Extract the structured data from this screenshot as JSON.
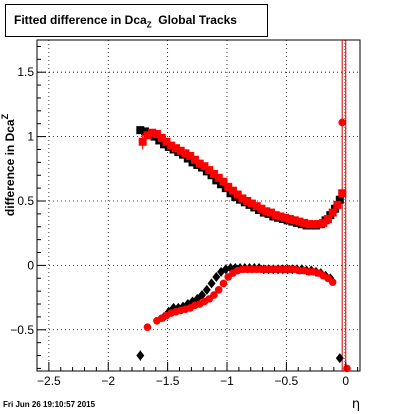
{
  "chart_data": {
    "type": "scatter",
    "title": "Fitted difference in Dca",
    "title_sub": "Z",
    "title_suffix": "Global Tracks",
    "ylabel": "difference in Dca",
    "ylabel_sub": "Z",
    "xlabel": "η",
    "xlim": [
      -2.6,
      0.12
    ],
    "ylim": [
      -0.82,
      1.75
    ],
    "grid": true,
    "xticks": [
      -2.5,
      -2,
      -1.5,
      -1,
      -0.5,
      0
    ],
    "xtick_labels": [
      "−2.5",
      "−2",
      "−1.5",
      "−1",
      "−0.5",
      "0"
    ],
    "yticks": [
      -0.5,
      0,
      0.5,
      1,
      1.5
    ],
    "ytick_labels": [
      "−0.5",
      "0",
      "0.5",
      "1",
      "1.5"
    ],
    "vlines": [
      -0.03,
      0.0
    ],
    "series": [
      {
        "marker": "square",
        "color": "#000000",
        "x": [
          -1.73,
          -1.69,
          -1.65,
          -1.61,
          -1.57,
          -1.53,
          -1.49,
          -1.45,
          -1.41,
          -1.37,
          -1.33,
          -1.29,
          -1.25,
          -1.21,
          -1.17,
          -1.13,
          -1.09,
          -1.05,
          -1.01,
          -0.97,
          -0.93,
          -0.89,
          -0.85,
          -0.81,
          -0.77,
          -0.73,
          -0.69,
          -0.65,
          -0.61,
          -0.57,
          -0.53,
          -0.49,
          -0.45,
          -0.41,
          -0.37,
          -0.33,
          -0.29,
          -0.25,
          -0.21,
          -0.17,
          -0.13,
          -0.09,
          -0.05
        ],
        "y": [
          1.05,
          1.04,
          1.02,
          1.0,
          0.97,
          0.94,
          0.92,
          0.9,
          0.88,
          0.86,
          0.83,
          0.8,
          0.78,
          0.76,
          0.73,
          0.7,
          0.66,
          0.63,
          0.6,
          0.56,
          0.53,
          0.51,
          0.49,
          0.47,
          0.45,
          0.43,
          0.41,
          0.4,
          0.38,
          0.37,
          0.36,
          0.35,
          0.34,
          0.33,
          0.32,
          0.31,
          0.31,
          0.31,
          0.32,
          0.35,
          0.39,
          0.44,
          0.51
        ],
        "err": [
          0.03,
          0.03,
          0.02,
          0.02,
          0.02,
          0.02,
          0.01,
          0.01,
          0.01,
          0.01,
          0.01,
          0.01,
          0.01,
          0.01,
          0.01,
          0.01,
          0.01,
          0.01,
          0.01,
          0.01,
          0.01,
          0.01,
          0.01,
          0.01,
          0.01,
          0.01,
          0.01,
          0.01,
          0.01,
          0.01,
          0.01,
          0.01,
          0.01,
          0.01,
          0.01,
          0.01,
          0.01,
          0.01,
          0.01,
          0.01,
          0.01,
          0.02,
          0.02
        ]
      },
      {
        "marker": "square",
        "color": "#ff0000",
        "x": [
          -1.71,
          -1.67,
          -1.63,
          -1.59,
          -1.55,
          -1.51,
          -1.47,
          -1.43,
          -1.39,
          -1.35,
          -1.31,
          -1.27,
          -1.23,
          -1.19,
          -1.15,
          -1.11,
          -1.07,
          -1.03,
          -0.99,
          -0.95,
          -0.91,
          -0.87,
          -0.83,
          -0.79,
          -0.75,
          -0.71,
          -0.67,
          -0.63,
          -0.59,
          -0.55,
          -0.51,
          -0.47,
          -0.43,
          -0.39,
          -0.35,
          -0.31,
          -0.27,
          -0.23,
          -0.19,
          -0.15,
          -0.11,
          -0.07,
          -0.03
        ],
        "y": [
          0.96,
          1.01,
          1.03,
          1.02,
          0.99,
          0.96,
          0.93,
          0.91,
          0.89,
          0.87,
          0.85,
          0.82,
          0.79,
          0.77,
          0.74,
          0.71,
          0.68,
          0.65,
          0.61,
          0.58,
          0.55,
          0.52,
          0.5,
          0.48,
          0.46,
          0.44,
          0.42,
          0.41,
          0.39,
          0.38,
          0.37,
          0.36,
          0.35,
          0.34,
          0.33,
          0.32,
          0.32,
          0.32,
          0.33,
          0.36,
          0.41,
          0.47,
          0.56
        ],
        "err": [
          0.06,
          0.03,
          0.02,
          0.02,
          0.02,
          0.02,
          0.01,
          0.01,
          0.01,
          0.01,
          0.01,
          0.01,
          0.01,
          0.01,
          0.01,
          0.01,
          0.01,
          0.01,
          0.01,
          0.01,
          0.01,
          0.01,
          0.01,
          0.01,
          0.01,
          0.01,
          0.01,
          0.01,
          0.01,
          0.01,
          0.01,
          0.01,
          0.01,
          0.01,
          0.01,
          0.01,
          0.01,
          0.01,
          0.01,
          0.01,
          0.01,
          0.02,
          0.02
        ]
      },
      {
        "marker": "diamond",
        "color": "#000000",
        "x": [
          -1.73,
          -1.53,
          -1.49,
          -1.45,
          -1.41,
          -1.37,
          -1.33,
          -1.29,
          -1.25,
          -1.21,
          -1.17,
          -1.13,
          -1.09,
          -1.05,
          -1.01,
          -0.97,
          -0.93,
          -0.89,
          -0.85,
          -0.81,
          -0.77,
          -0.73,
          -0.69,
          -0.65,
          -0.61,
          -0.57,
          -0.53,
          -0.49,
          -0.45,
          -0.41,
          -0.37,
          -0.33,
          -0.29,
          -0.25,
          -0.21,
          -0.17,
          -0.13,
          -0.05
        ],
        "y": [
          -0.7,
          -0.4,
          -0.36,
          -0.33,
          -0.33,
          -0.32,
          -0.3,
          -0.28,
          -0.26,
          -0.23,
          -0.19,
          -0.14,
          -0.09,
          -0.05,
          -0.03,
          -0.02,
          -0.02,
          -0.02,
          -0.02,
          -0.02,
          -0.02,
          -0.02,
          -0.03,
          -0.03,
          -0.03,
          -0.03,
          -0.03,
          -0.03,
          -0.03,
          -0.03,
          -0.03,
          -0.04,
          -0.04,
          -0.05,
          -0.06,
          -0.08,
          -0.1,
          -0.72
        ],
        "err": [
          0.04,
          0.02,
          0.02,
          0.02,
          0.01,
          0.01,
          0.01,
          0.01,
          0.01,
          0.01,
          0.01,
          0.01,
          0.01,
          0.01,
          0.01,
          0.01,
          0.01,
          0.01,
          0.01,
          0.01,
          0.01,
          0.01,
          0.01,
          0.01,
          0.01,
          0.01,
          0.01,
          0.01,
          0.01,
          0.01,
          0.01,
          0.01,
          0.01,
          0.01,
          0.01,
          0.01,
          0.01,
          0.02
        ]
      },
      {
        "marker": "circle",
        "color": "#ff0000",
        "x": [
          -1.67,
          -1.59,
          -1.55,
          -1.51,
          -1.47,
          -1.43,
          -1.39,
          -1.35,
          -1.31,
          -1.27,
          -1.23,
          -1.19,
          -1.15,
          -1.11,
          -1.07,
          -1.03,
          -0.99,
          -0.95,
          -0.91,
          -0.87,
          -0.83,
          -0.79,
          -0.75,
          -0.71,
          -0.67,
          -0.63,
          -0.59,
          -0.55,
          -0.51,
          -0.47,
          -0.43,
          -0.39,
          -0.35,
          -0.31,
          -0.27,
          -0.23,
          -0.19,
          -0.15,
          -0.11,
          -0.03,
          0.01
        ],
        "y": [
          -0.48,
          -0.43,
          -0.41,
          -0.39,
          -0.37,
          -0.36,
          -0.35,
          -0.34,
          -0.33,
          -0.31,
          -0.3,
          -0.28,
          -0.26,
          -0.23,
          -0.19,
          -0.14,
          -0.09,
          -0.06,
          -0.04,
          -0.03,
          -0.03,
          -0.03,
          -0.03,
          -0.03,
          -0.03,
          -0.03,
          -0.03,
          -0.03,
          -0.03,
          -0.03,
          -0.03,
          -0.04,
          -0.04,
          -0.05,
          -0.05,
          -0.06,
          -0.08,
          -0.1,
          -0.13,
          1.11,
          -0.8
        ],
        "err": [
          0.02,
          0.02,
          0.02,
          0.02,
          0.01,
          0.01,
          0.01,
          0.01,
          0.01,
          0.01,
          0.01,
          0.01,
          0.01,
          0.01,
          0.01,
          0.01,
          0.01,
          0.01,
          0.01,
          0.01,
          0.01,
          0.01,
          0.01,
          0.01,
          0.01,
          0.01,
          0.01,
          0.01,
          0.01,
          0.01,
          0.01,
          0.01,
          0.01,
          0.01,
          0.01,
          0.01,
          0.01,
          0.01,
          0.01,
          0.02,
          0.02
        ]
      }
    ]
  },
  "footer": {
    "timestamp": "Fri Jun 26 19:10:57 2015"
  }
}
